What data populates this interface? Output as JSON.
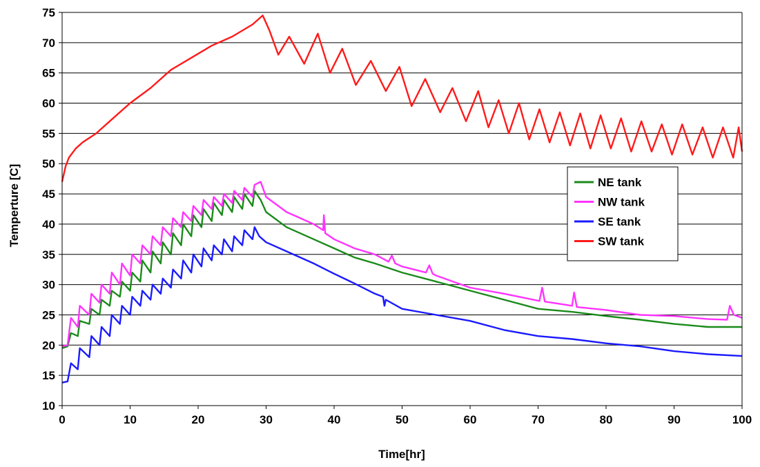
{
  "chart_data": {
    "type": "line",
    "title": "",
    "xlabel": "Time[hr]",
    "ylabel": "Temperture [C]",
    "xlim": [
      0,
      100
    ],
    "ylim": [
      10,
      75
    ],
    "xticks": [
      "0",
      "10",
      "20",
      "30",
      "40",
      "50",
      "60",
      "70",
      "80",
      "90",
      "100"
    ],
    "yticks": [
      "10",
      "15",
      "20",
      "25",
      "30",
      "35",
      "40",
      "45",
      "50",
      "55",
      "60",
      "65",
      "70",
      "75"
    ],
    "grid": "horizontal",
    "legend_position": "right",
    "series": [
      {
        "name": "NE tank",
        "color": "#1a8a1a",
        "x": [
          0,
          0.8,
          1.3,
          2.3,
          2.6,
          4,
          4.3,
          5.5,
          5.8,
          7,
          7.3,
          8.5,
          8.8,
          10,
          10.3,
          11.5,
          11.8,
          13,
          13.3,
          14.5,
          14.8,
          16,
          16.3,
          17.5,
          17.8,
          19,
          19.3,
          20.5,
          20.8,
          22,
          22.3,
          23.5,
          23.8,
          25,
          25.3,
          26.5,
          26.8,
          28,
          28.3,
          29.2,
          30,
          33,
          37,
          40,
          43,
          46,
          50,
          55,
          60,
          65,
          70,
          75,
          80,
          85,
          90,
          95,
          100
        ],
        "y": [
          19.5,
          19.8,
          22,
          21.5,
          24,
          23.5,
          26,
          25,
          27.5,
          26.5,
          29,
          28,
          30.5,
          29,
          32,
          30.5,
          34,
          32,
          35.5,
          33.5,
          37,
          35,
          38.5,
          36.5,
          40,
          38,
          41.5,
          39.5,
          42.5,
          40.5,
          43.5,
          41.5,
          44,
          42,
          44.5,
          42.5,
          45,
          43,
          45.5,
          44,
          42,
          39.5,
          37.5,
          36,
          34.5,
          33.5,
          32,
          30.5,
          29,
          27.5,
          26,
          25.5,
          24.8,
          24.2,
          23.5,
          23,
          23
        ]
      },
      {
        "name": "NW tank",
        "color": "#ff33ff",
        "x": [
          0,
          0.8,
          1.3,
          2.3,
          2.6,
          4,
          4.3,
          5.5,
          5.8,
          7,
          7.3,
          8.5,
          8.8,
          10,
          10.3,
          11.5,
          11.8,
          13,
          13.3,
          14.5,
          14.8,
          16,
          16.3,
          17.5,
          17.8,
          19,
          19.3,
          20.5,
          20.8,
          22,
          22.3,
          23.5,
          23.8,
          25,
          25.3,
          26.5,
          26.8,
          28,
          28.3,
          29.2,
          30,
          33,
          37,
          38.4,
          38.5,
          38.7,
          40,
          43,
          46,
          48,
          48.5,
          49,
          50,
          53.5,
          54,
          54.5,
          55,
          60,
          65,
          70.2,
          70.6,
          71,
          75,
          75.3,
          75.7,
          80,
          85,
          90,
          95,
          97.8,
          98.2,
          98.8,
          100
        ],
        "y": [
          19.8,
          20,
          24.5,
          23,
          26.5,
          25,
          28.5,
          27,
          30,
          28.5,
          32,
          30,
          33.5,
          31.5,
          35,
          33.5,
          36.5,
          35,
          38,
          36.5,
          39.5,
          38,
          41,
          39.5,
          42,
          40.5,
          43,
          41.5,
          44,
          42.5,
          44.5,
          43,
          45,
          43.5,
          45.5,
          44,
          46,
          44.5,
          46.5,
          47,
          44.5,
          42,
          40,
          39,
          41.5,
          38.5,
          37.5,
          36,
          35,
          33.8,
          34.8,
          33.5,
          33,
          32,
          33.2,
          31.8,
          31.5,
          29.5,
          28.5,
          27.3,
          29.5,
          27.2,
          26.5,
          28.7,
          26.3,
          25.8,
          25,
          24.8,
          24.3,
          24.2,
          26.5,
          25,
          24.5
        ]
      },
      {
        "name": "SE tank",
        "color": "#1a1aff",
        "x": [
          0,
          0.8,
          1.3,
          2.3,
          2.6,
          4,
          4.3,
          5.5,
          5.8,
          7,
          7.3,
          8.5,
          8.8,
          10,
          10.3,
          11.5,
          11.8,
          13,
          13.3,
          14.5,
          14.8,
          16,
          16.3,
          17.5,
          17.8,
          19,
          19.3,
          20.5,
          20.8,
          22,
          22.3,
          23.5,
          23.8,
          25,
          25.3,
          26.5,
          26.8,
          28,
          28.3,
          29,
          30,
          33,
          37,
          40,
          43,
          46,
          47.2,
          47.4,
          47.6,
          50,
          55,
          60,
          65,
          70,
          75,
          80,
          85,
          90,
          95,
          100
        ],
        "y": [
          13.8,
          14,
          17,
          16,
          19.5,
          18,
          21.5,
          20,
          23,
          21.5,
          25,
          23.5,
          26.5,
          25,
          28,
          26.5,
          29,
          27.5,
          30,
          28.5,
          31,
          29.5,
          32.5,
          31,
          34,
          32,
          35,
          33,
          36,
          34,
          36.5,
          35,
          37.5,
          35.5,
          38,
          36.5,
          39,
          37.5,
          39.5,
          38,
          37,
          35.5,
          33.5,
          31.8,
          30.2,
          28.5,
          28,
          26.5,
          27.5,
          26,
          25,
          24,
          22.5,
          21.5,
          21,
          20.3,
          19.8,
          19,
          18.5,
          18.2
        ]
      },
      {
        "name": "SW tank",
        "color": "#ff1a1a",
        "x": [
          0,
          0.5,
          1,
          2,
          3,
          5,
          7,
          10,
          13,
          16,
          19,
          22,
          25,
          28,
          29.5,
          30.5,
          31.8,
          33.4,
          35.6,
          37.6,
          39.4,
          41.2,
          43.2,
          45.4,
          47.6,
          49.6,
          51.4,
          53.4,
          55.6,
          57.4,
          59.4,
          61.2,
          62.7,
          64.2,
          65.7,
          67.2,
          68.7,
          70.2,
          71.7,
          73.2,
          74.7,
          76.2,
          77.7,
          79.2,
          80.7,
          82.2,
          83.7,
          85.2,
          86.7,
          88.2,
          89.7,
          91.2,
          92.7,
          94.2,
          95.7,
          97.2,
          98.7,
          99.5,
          100
        ],
        "y": [
          47,
          49.5,
          51,
          52.5,
          53.5,
          55,
          57,
          60,
          62.5,
          65.5,
          67.5,
          69.5,
          71,
          73,
          74.5,
          72,
          68,
          71,
          66.5,
          71.5,
          65,
          69,
          63,
          67,
          62,
          66,
          59.5,
          64,
          58.5,
          62.5,
          57,
          62,
          56,
          60.5,
          55,
          60,
          54,
          59,
          53.5,
          58.5,
          53,
          58.3,
          52.5,
          58,
          52.5,
          57.5,
          52,
          57,
          52,
          56.5,
          51.5,
          56.5,
          51.5,
          56,
          51,
          56,
          51,
          56,
          52
        ]
      }
    ]
  }
}
